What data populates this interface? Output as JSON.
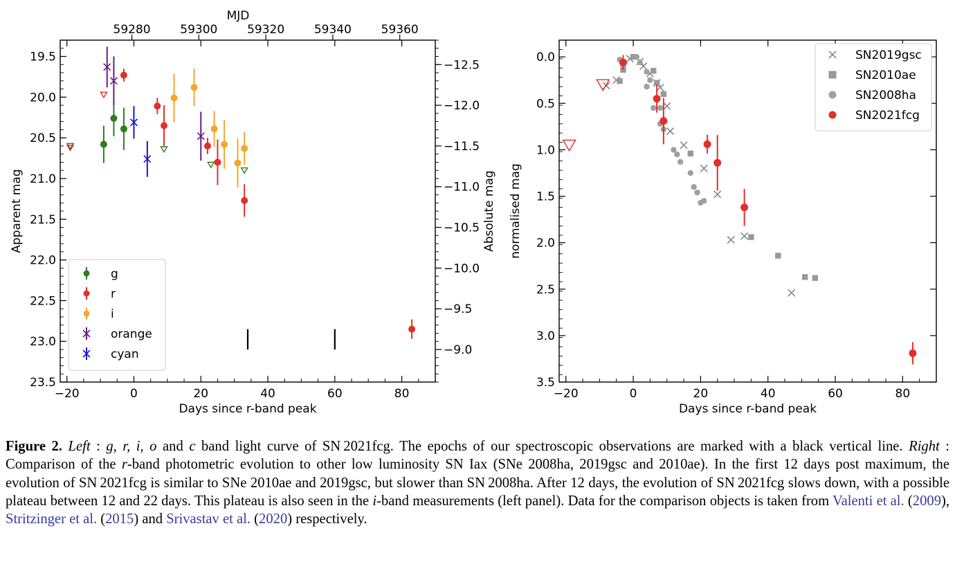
{
  "chart_data": [
    {
      "type": "scatter",
      "panel": "left",
      "xlabel": "Days since r-band peak",
      "ylabel": "Apparent mag",
      "y2label": "Absolute mag",
      "top_xlabel": "MJD",
      "xlim": [
        -22,
        90
      ],
      "ylim": [
        23.5,
        19.3
      ],
      "xticks": [
        -20,
        0,
        20,
        40,
        60,
        80
      ],
      "yticks": [
        19.5,
        20.0,
        20.5,
        21.0,
        21.5,
        22.0,
        22.5,
        23.0,
        23.5
      ],
      "y2ticks": [
        -12.5,
        -12.0,
        -11.5,
        -11.0,
        -10.5,
        -10.0,
        -9.5,
        -9.0
      ],
      "top_ticks": [
        59280,
        59300,
        59320,
        59340,
        59360
      ],
      "mjd_of_peak": 59280.6,
      "distance_modulus": 32.1,
      "grid": false,
      "legend_position": "bottom-left",
      "series": [
        {
          "name": "g",
          "color": "#2e7d1e",
          "marker": "circle",
          "points": [
            [
              -9,
              20.58,
              0.23
            ],
            [
              -6,
              20.26,
              0.22
            ],
            [
              -3,
              20.39,
              0.26
            ]
          ],
          "upper_limits": [
            [
              -19,
              20.6
            ],
            [
              9,
              20.64
            ],
            [
              23,
              20.83
            ],
            [
              33,
              20.9
            ]
          ]
        },
        {
          "name": "r",
          "color": "#e0302a",
          "marker": "circle",
          "points": [
            [
              -3,
              19.73,
              0.08
            ],
            [
              7,
              20.11,
              0.1
            ],
            [
              9,
              20.35,
              0.25
            ],
            [
              22,
              20.6,
              0.1
            ],
            [
              25,
              20.8,
              0.28
            ],
            [
              33,
              21.27,
              0.2
            ],
            [
              83,
              22.85,
              0.12
            ]
          ],
          "upper_limits": [
            [
              -19,
              20.62
            ],
            [
              -9,
              19.97
            ]
          ]
        },
        {
          "name": "i",
          "color": "#f0a830",
          "marker": "circle",
          "points": [
            [
              12,
              20.01,
              0.3
            ],
            [
              18,
              19.88,
              0.23
            ],
            [
              24,
              20.39,
              0.22
            ],
            [
              27,
              20.58,
              0.3
            ],
            [
              31,
              20.81,
              0.3
            ],
            [
              33,
              20.63,
              0.2
            ]
          ],
          "upper_limits": []
        },
        {
          "name": "orange",
          "color": "#6a1a82",
          "marker": "x",
          "points": [
            [
              -8,
              19.63,
              0.25
            ],
            [
              -6,
              19.8,
              0.3
            ],
            [
              20,
              20.48,
              0.3
            ]
          ],
          "upper_limits": []
        },
        {
          "name": "cyan",
          "color": "#1515d0",
          "marker": "x",
          "points": [
            [
              0,
              20.31,
              0.2
            ],
            [
              4,
              20.76,
              0.22
            ]
          ],
          "upper_limits": []
        }
      ],
      "spectra_epochs": [
        34,
        60
      ],
      "spectra_marker_mag_range": [
        22.85,
        23.1
      ]
    },
    {
      "type": "scatter",
      "panel": "right",
      "xlabel": "Days since r-band peak",
      "ylabel": "normalised mag",
      "xlim": [
        -22,
        90
      ],
      "ylim": [
        3.5,
        -0.18
      ],
      "xticks": [
        -20,
        0,
        20,
        40,
        60,
        80
      ],
      "yticks": [
        0.0,
        0.5,
        1.0,
        1.5,
        2.0,
        2.5,
        3.0,
        3.5
      ],
      "grid": false,
      "legend_position": "top-right",
      "series": [
        {
          "name": "SN2019gsc",
          "color": "#888888",
          "marker": "x",
          "points": [
            [
              -8,
              0.31
            ],
            [
              -5,
              0.25
            ],
            [
              -1,
              0.02
            ],
            [
              2,
              0.05
            ],
            [
              3,
              0.1
            ],
            [
              5,
              0.18
            ],
            [
              7,
              0.28
            ],
            [
              8,
              0.33
            ],
            [
              10,
              0.53
            ],
            [
              11,
              0.8
            ],
            [
              15,
              0.95
            ],
            [
              21,
              1.2
            ],
            [
              25,
              1.48
            ],
            [
              29,
              1.97
            ],
            [
              33,
              1.93
            ],
            [
              47,
              2.54
            ]
          ]
        },
        {
          "name": "SN2010ae",
          "color": "#999999",
          "marker": "square",
          "points": [
            [
              -4,
              0.26
            ],
            [
              -3,
              0.14
            ],
            [
              0,
              0.0
            ],
            [
              6,
              0.15
            ],
            [
              7,
              0.28
            ],
            [
              9,
              0.4
            ],
            [
              17,
              1.04
            ],
            [
              35,
              1.94
            ],
            [
              43,
              2.14
            ],
            [
              51,
              2.37
            ],
            [
              54,
              2.38
            ]
          ]
        },
        {
          "name": "SN2008ha",
          "color": "#a0a0a0",
          "marker": "circle",
          "points": [
            [
              -4,
              0.03
            ],
            [
              -3,
              0.09
            ],
            [
              1,
              0.0
            ],
            [
              2,
              0.06
            ],
            [
              4,
              0.16
            ],
            [
              5,
              0.25
            ],
            [
              4,
              0.32
            ],
            [
              6,
              0.55
            ],
            [
              8,
              0.55
            ],
            [
              8,
              0.72
            ],
            [
              9,
              0.78
            ],
            [
              12,
              1.0
            ],
            [
              13,
              1.05
            ],
            [
              14,
              1.13
            ],
            [
              17,
              1.25
            ],
            [
              18,
              1.4
            ],
            [
              19,
              1.46
            ],
            [
              20,
              1.57
            ],
            [
              21,
              1.55
            ]
          ]
        },
        {
          "name": "SN2021fcg",
          "color": "#e0302a",
          "marker": "circle",
          "points": [
            [
              -3,
              0.06,
              0.08
            ],
            [
              7,
              0.45,
              0.15
            ],
            [
              9,
              0.69,
              0.25
            ],
            [
              22,
              0.94,
              0.1
            ],
            [
              25,
              1.14,
              0.3
            ],
            [
              33,
              1.62,
              0.2
            ],
            [
              83,
              3.19,
              0.12
            ]
          ],
          "upper_limits": [
            [
              -19,
              0.95
            ],
            [
              -9,
              0.3
            ]
          ]
        }
      ]
    }
  ],
  "caption": {
    "label": "Figure 2.",
    "text_html": "<i>Left</i> : <i>g, r, i, o</i> and <i>c</i> band light curve of SN 2021fcg. The epochs of our spectroscopic observations are marked with a black vertical line. <i>Right</i> : Comparison of the <i>r</i>-band photometric evolution to other low luminosity SN Iax (SNe 2008ha, 2019gsc and 2010ae). In the first 12 days post maximum, the evolution of SN 2021fcg is similar to SNe 2010ae and 2019gsc, but slower than SN 2008ha. After 12 days, the evolution of SN 2021fcg slows down, with a possible plateau between 12 and 22 days. This plateau is also seen in the <i>i</i>-band measurements (left panel). Data for the comparison objects is taken from <span class=\"ref\">Valenti et al.</span> (<span class=\"ref\">2009</span>), <span class=\"ref\">Stritzinger et al.</span> (<span class=\"ref\">2015</span>) and <span class=\"ref\">Srivastav et al.</span> (<span class=\"ref\">2020</span>) respectively."
  }
}
